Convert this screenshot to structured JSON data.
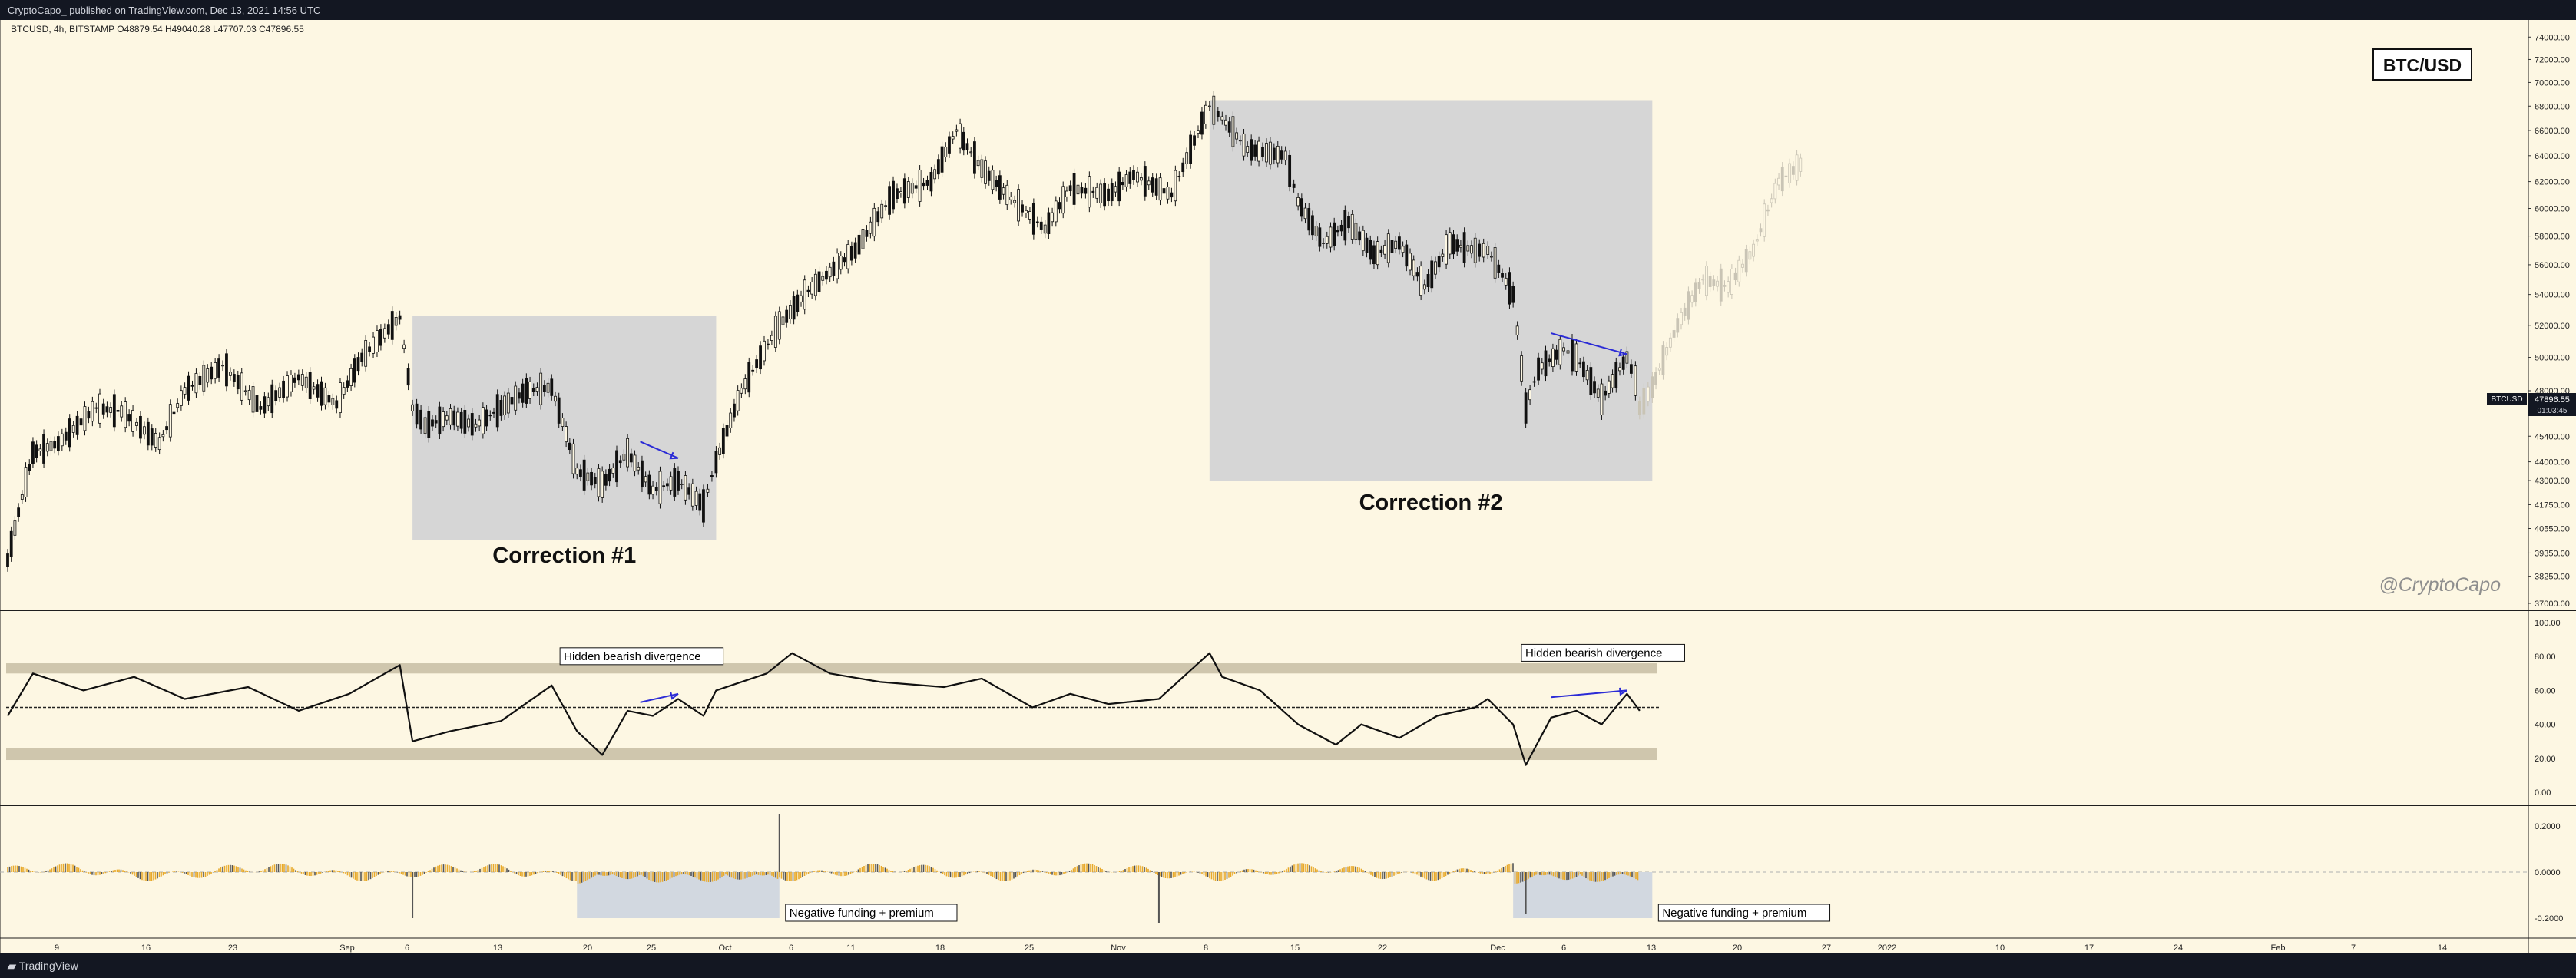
{
  "header": {
    "published_line": "CryptoCapo_ published on TradingView.com, Dec 13, 2021 14:56 UTC"
  },
  "footer": {
    "logo_text": "TradingView"
  },
  "chart_data": [
    {
      "type": "candlestick",
      "symbol_line": "BTCUSD, 4h, BITSTAMP  O48879.54  H49040.28  L47707.03  C47896.55",
      "badge_title": "BTC/USD",
      "watermark": "@CryptoCapo_",
      "price_tag": {
        "symbol": "BTCUSD",
        "price": "47896.55",
        "countdown": "01:03:45"
      },
      "y_scale": "log",
      "ylim": [
        37000,
        75000
      ],
      "y_ticks": [
        "74000.00",
        "72000.00",
        "70000.00",
        "68000.00",
        "66000.00",
        "64000.00",
        "62000.00",
        "60000.00",
        "58000.00",
        "56000.00",
        "54000.00",
        "52000.00",
        "50000.00",
        "48000.00",
        "45400.00",
        "44000.00",
        "43000.00",
        "41750.00",
        "40550.00",
        "39350.00",
        "38250.00",
        "37000.00"
      ],
      "x_ticks": [
        "9",
        "16",
        "23",
        "Sep",
        "6",
        "13",
        "20",
        "25",
        "Oct",
        "6",
        "11",
        "18",
        "25",
        "Nov",
        "8",
        "15",
        "22",
        "Dec",
        "6",
        "13",
        "20",
        "27",
        "2022",
        "10",
        "17",
        "24",
        "Feb",
        "7",
        "14"
      ],
      "x_range_dates": [
        "2021-08-06",
        "2022-02-17"
      ],
      "price_path": [
        [
          "2021-08-06",
          39000
        ],
        [
          "2021-08-08",
          44500
        ],
        [
          "2021-08-10",
          45000
        ],
        [
          "2021-08-13",
          47000
        ],
        [
          "2021-08-15",
          46800
        ],
        [
          "2021-08-18",
          45000
        ],
        [
          "2021-08-20",
          48000
        ],
        [
          "2021-08-23",
          49500
        ],
        [
          "2021-08-26",
          47000
        ],
        [
          "2021-08-29",
          48800
        ],
        [
          "2021-09-01",
          47200
        ],
        [
          "2021-09-03",
          50000
        ],
        [
          "2021-09-06",
          52500
        ],
        [
          "2021-09-07",
          47000
        ],
        [
          "2021-09-08",
          46000
        ],
        [
          "2021-09-10",
          46500
        ],
        [
          "2021-09-12",
          46000
        ],
        [
          "2021-09-14",
          47000
        ],
        [
          "2021-09-16",
          48000
        ],
        [
          "2021-09-18",
          48200
        ],
        [
          "2021-09-20",
          43500
        ],
        [
          "2021-09-22",
          42800
        ],
        [
          "2021-09-24",
          44500
        ],
        [
          "2021-09-26",
          42500
        ],
        [
          "2021-09-28",
          43000
        ],
        [
          "2021-09-30",
          41700
        ],
        [
          "2021-10-01",
          44000
        ],
        [
          "2021-10-03",
          48000
        ],
        [
          "2021-10-06",
          52000
        ],
        [
          "2021-10-08",
          54000
        ],
        [
          "2021-10-10",
          55500
        ],
        [
          "2021-10-12",
          57000
        ],
        [
          "2021-10-15",
          61000
        ],
        [
          "2021-10-18",
          62000
        ],
        [
          "2021-10-20",
          66000
        ],
        [
          "2021-10-22",
          63000
        ],
        [
          "2021-10-24",
          61000
        ],
        [
          "2021-10-27",
          58500
        ],
        [
          "2021-10-29",
          61500
        ],
        [
          "2021-11-01",
          61000
        ],
        [
          "2021-11-03",
          62500
        ],
        [
          "2021-11-06",
          61000
        ],
        [
          "2021-11-09",
          68000
        ],
        [
          "2021-11-10",
          67000
        ],
        [
          "2021-11-12",
          64500
        ],
        [
          "2021-11-15",
          64000
        ],
        [
          "2021-11-16",
          60500
        ],
        [
          "2021-11-18",
          57500
        ],
        [
          "2021-11-20",
          59000
        ],
        [
          "2021-11-22",
          56700
        ],
        [
          "2021-11-24",
          57500
        ],
        [
          "2021-11-26",
          54500
        ],
        [
          "2021-11-28",
          57500
        ],
        [
          "2021-11-30",
          57000
        ],
        [
          "2021-12-01",
          57000
        ],
        [
          "2021-12-03",
          54000
        ],
        [
          "2021-12-04",
          47000
        ],
        [
          "2021-12-05",
          49300
        ],
        [
          "2021-12-07",
          50500
        ],
        [
          "2021-12-08",
          50000
        ],
        [
          "2021-12-10",
          47500
        ],
        [
          "2021-12-12",
          50000
        ],
        [
          "2021-12-13",
          47896.55
        ]
      ],
      "projection_path": [
        [
          "2021-12-13",
          47000
        ],
        [
          "2021-12-14",
          48200
        ],
        [
          "2021-12-16",
          52000
        ],
        [
          "2021-12-18",
          55000
        ],
        [
          "2021-12-20",
          54500
        ],
        [
          "2021-12-22",
          57000
        ],
        [
          "2021-12-24",
          62000
        ],
        [
          "2021-12-26",
          63500
        ]
      ],
      "zones": [
        {
          "label": "Correction #1",
          "from": "2021-09-07",
          "to": "2021-10-01",
          "high": 52600,
          "low": 40000
        },
        {
          "label": "Correction #2",
          "from": "2021-11-09",
          "to": "2021-12-14",
          "high": 68500,
          "low": 43000
        }
      ],
      "arrows": [
        {
          "from": [
            "2021-09-25",
            45100
          ],
          "to": [
            "2021-09-28",
            44200
          ]
        },
        {
          "from": [
            "2021-12-06",
            51500
          ],
          "to": [
            "2021-12-12",
            50200
          ]
        }
      ]
    },
    {
      "type": "line",
      "indicator": "RSI",
      "ylim": [
        0,
        100
      ],
      "y_ticks": [
        "100.00",
        "80.00",
        "60.00",
        "40.00",
        "20.00",
        "0.00"
      ],
      "bands": [
        [
          70,
          76
        ],
        [
          19,
          26
        ]
      ],
      "midline": 50,
      "values_path": [
        [
          "2021-08-06",
          45
        ],
        [
          "2021-08-08",
          70
        ],
        [
          "2021-08-12",
          60
        ],
        [
          "2021-08-16",
          68
        ],
        [
          "2021-08-20",
          55
        ],
        [
          "2021-08-25",
          62
        ],
        [
          "2021-08-29",
          48
        ],
        [
          "2021-09-02",
          58
        ],
        [
          "2021-09-06",
          75
        ],
        [
          "2021-09-07",
          30
        ],
        [
          "2021-09-10",
          36
        ],
        [
          "2021-09-14",
          42
        ],
        [
          "2021-09-18",
          63
        ],
        [
          "2021-09-20",
          36
        ],
        [
          "2021-09-22",
          22
        ],
        [
          "2021-09-24",
          48
        ],
        [
          "2021-09-26",
          45
        ],
        [
          "2021-09-28",
          55
        ],
        [
          "2021-09-30",
          45
        ],
        [
          "2021-10-01",
          60
        ],
        [
          "2021-10-05",
          70
        ],
        [
          "2021-10-07",
          82
        ],
        [
          "2021-10-10",
          70
        ],
        [
          "2021-10-14",
          65
        ],
        [
          "2021-10-19",
          62
        ],
        [
          "2021-10-22",
          67
        ],
        [
          "2021-10-26",
          50
        ],
        [
          "2021-10-29",
          58
        ],
        [
          "2021-11-01",
          52
        ],
        [
          "2021-11-05",
          55
        ],
        [
          "2021-11-09",
          82
        ],
        [
          "2021-11-10",
          68
        ],
        [
          "2021-11-13",
          60
        ],
        [
          "2021-11-16",
          40
        ],
        [
          "2021-11-19",
          28
        ],
        [
          "2021-11-21",
          40
        ],
        [
          "2021-11-24",
          32
        ],
        [
          "2021-11-27",
          45
        ],
        [
          "2021-11-30",
          50
        ],
        [
          "2021-12-01",
          55
        ],
        [
          "2021-12-03",
          40
        ],
        [
          "2021-12-04",
          16
        ],
        [
          "2021-12-06",
          44
        ],
        [
          "2021-12-08",
          48
        ],
        [
          "2021-12-10",
          40
        ],
        [
          "2021-12-12",
          58
        ],
        [
          "2021-12-13",
          48
        ]
      ],
      "annotations": [
        {
          "text": "Hidden bearish divergence",
          "date": "2021-09-24",
          "value": 77
        },
        {
          "text": "Hidden bearish divergence",
          "date": "2021-12-09",
          "value": 79
        }
      ],
      "arrows": [
        {
          "from": [
            "2021-09-25",
            53
          ],
          "to": [
            "2021-09-28",
            58
          ]
        },
        {
          "from": [
            "2021-12-06",
            56
          ],
          "to": [
            "2021-12-12",
            60
          ]
        }
      ]
    },
    {
      "type": "histogram",
      "indicator": "Funding + premium",
      "ylim": [
        -0.25,
        0.25
      ],
      "y_ticks": [
        "0.2000",
        "0.0000",
        "-0.2000"
      ],
      "zones": [
        {
          "label": "Negative funding + premium",
          "from": "2021-09-20",
          "to": "2021-10-06",
          "low": -0.2,
          "high": 0.0
        },
        {
          "label": "Negative funding + premium",
          "from": "2021-12-03",
          "to": "2021-12-14",
          "low": -0.2,
          "high": 0.0
        }
      ]
    }
  ]
}
